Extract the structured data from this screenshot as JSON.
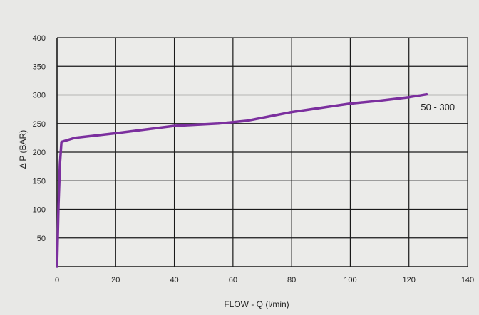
{
  "chart_data": {
    "type": "line",
    "title": "",
    "xlabel": "FLOW - Q  (l/min)",
    "ylabel": "Δ  P (BAR)",
    "xlim": [
      0,
      140
    ],
    "ylim": [
      0,
      400
    ],
    "x_ticks": [
      0,
      20,
      40,
      60,
      80,
      100,
      120,
      140
    ],
    "y_ticks": [
      50,
      100,
      150,
      200,
      250,
      300,
      350,
      400
    ],
    "grid": true,
    "series": [
      {
        "name": "50 - 300",
        "color": "#7b2f9e",
        "points": [
          [
            0,
            0
          ],
          [
            0.5,
            110
          ],
          [
            1,
            180
          ],
          [
            1.5,
            218
          ],
          [
            6,
            225
          ],
          [
            20,
            233
          ],
          [
            40,
            246
          ],
          [
            55,
            250
          ],
          [
            65,
            255
          ],
          [
            80,
            270
          ],
          [
            100,
            285
          ],
          [
            110,
            290
          ],
          [
            120,
            296
          ],
          [
            126,
            301
          ]
        ]
      }
    ],
    "annotations": [
      {
        "text": "50 - 300",
        "x": 126,
        "y": 278
      }
    ]
  }
}
